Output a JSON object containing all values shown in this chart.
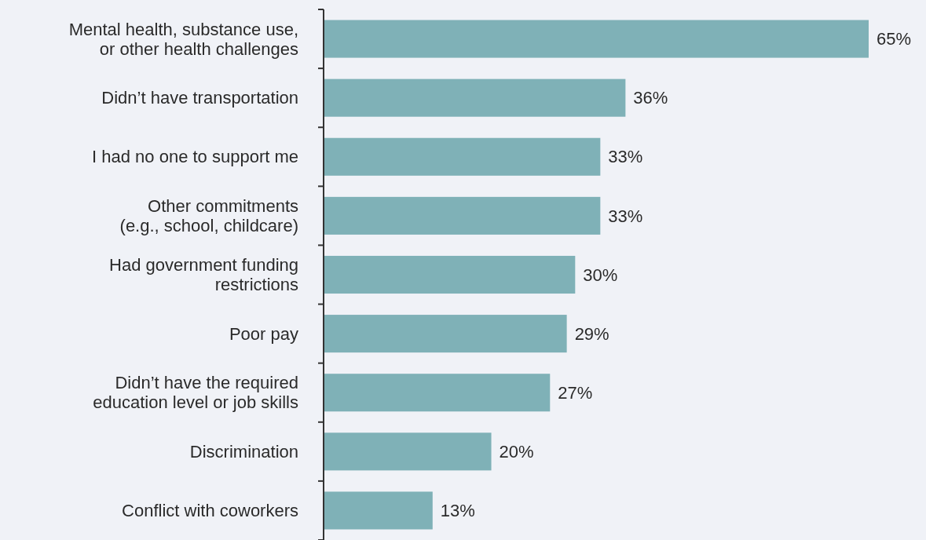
{
  "chart_data": {
    "type": "bar",
    "orientation": "horizontal",
    "categories": [
      "Mental health, substance use,\nor other health challenges",
      "Didn’t have transportation",
      "I had no one to support me",
      "Other commitments\n(e.g., school, childcare)",
      "Had government funding\nrestrictions",
      "Poor pay",
      "Didn’t have the required\neducation level or job skills",
      "Discrimination",
      "Conflict with coworkers"
    ],
    "values": [
      65,
      36,
      33,
      33,
      30,
      29,
      27,
      20,
      13
    ],
    "value_labels": [
      "65%",
      "36%",
      "33%",
      "33%",
      "30%",
      "29%",
      "27%",
      "20%",
      "13%"
    ],
    "color": "#7fb1b7"
  }
}
